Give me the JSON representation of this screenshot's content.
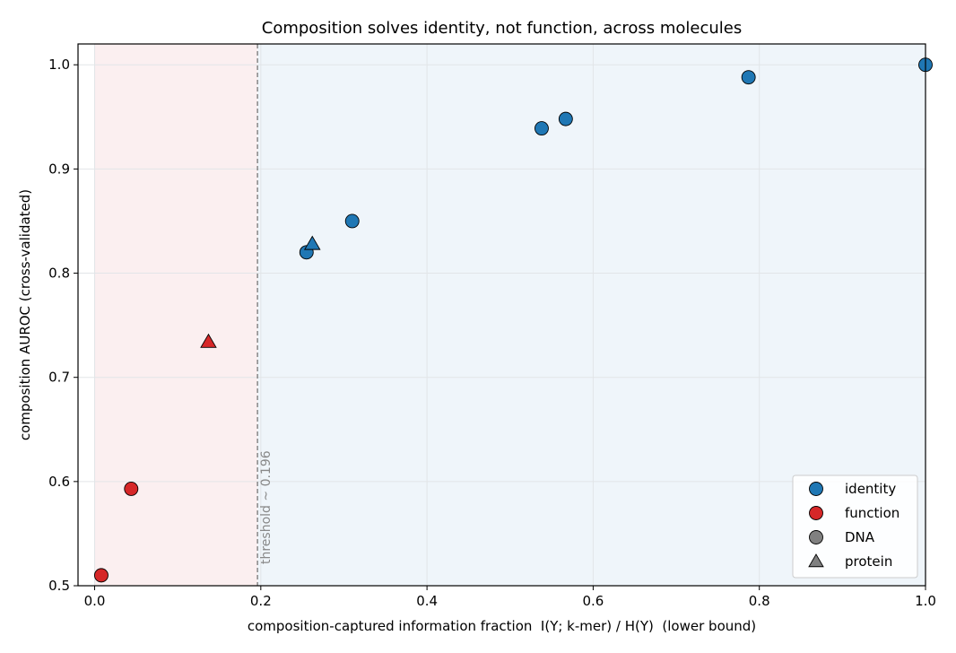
{
  "chart_data": {
    "type": "scatter",
    "title": "Composition solves identity, not function, across molecules",
    "xlabel": "composition-captured information fraction  I(Y; k-mer) / H(Y)  (lower bound)",
    "ylabel": "composition AUROC (cross-validated)",
    "xlim": [
      -0.02,
      1.0
    ],
    "ylim": [
      0.5,
      1.02
    ],
    "x_ticks": [
      0.0,
      0.2,
      0.4,
      0.6,
      0.8,
      1.0
    ],
    "x_tick_labels": [
      "0.0",
      "0.2",
      "0.4",
      "0.6",
      "0.8",
      "1.0"
    ],
    "y_ticks": [
      0.5,
      0.6,
      0.7,
      0.8,
      0.9,
      1.0
    ],
    "y_tick_labels": [
      "0.5",
      "0.6",
      "0.7",
      "0.8",
      "0.9",
      "1.0"
    ],
    "grid": true,
    "threshold": {
      "x": 0.196,
      "label": "threshold ~ 0.196",
      "color": "#808080"
    },
    "regions": [
      {
        "from": 0.0,
        "to": 0.196,
        "color": "#fbeff0"
      },
      {
        "from": 0.196,
        "to": 1.0,
        "color": "#eff5fa"
      }
    ],
    "series": [
      {
        "name": "identity",
        "color": "#1f77b4",
        "points": [
          {
            "x": 0.255,
            "y": 0.82,
            "marker": "circle"
          },
          {
            "x": 0.262,
            "y": 0.828,
            "marker": "triangle"
          },
          {
            "x": 0.31,
            "y": 0.85,
            "marker": "circle"
          },
          {
            "x": 0.538,
            "y": 0.939,
            "marker": "circle"
          },
          {
            "x": 0.567,
            "y": 0.948,
            "marker": "circle"
          },
          {
            "x": 0.787,
            "y": 0.988,
            "marker": "circle"
          },
          {
            "x": 1.0,
            "y": 1.0,
            "marker": "circle"
          }
        ]
      },
      {
        "name": "function",
        "color": "#d62728",
        "points": [
          {
            "x": 0.008,
            "y": 0.51,
            "marker": "circle"
          },
          {
            "x": 0.044,
            "y": 0.593,
            "marker": "circle"
          },
          {
            "x": 0.137,
            "y": 0.734,
            "marker": "triangle"
          }
        ]
      }
    ],
    "legend": {
      "placement": "lower-right",
      "entries": [
        {
          "label": "identity",
          "marker": "circle",
          "color": "#1f77b4"
        },
        {
          "label": "function",
          "marker": "circle",
          "color": "#d62728"
        },
        {
          "label": "DNA",
          "marker": "circle",
          "color": "#808080"
        },
        {
          "label": "protein",
          "marker": "triangle",
          "color": "#808080"
        }
      ]
    }
  }
}
